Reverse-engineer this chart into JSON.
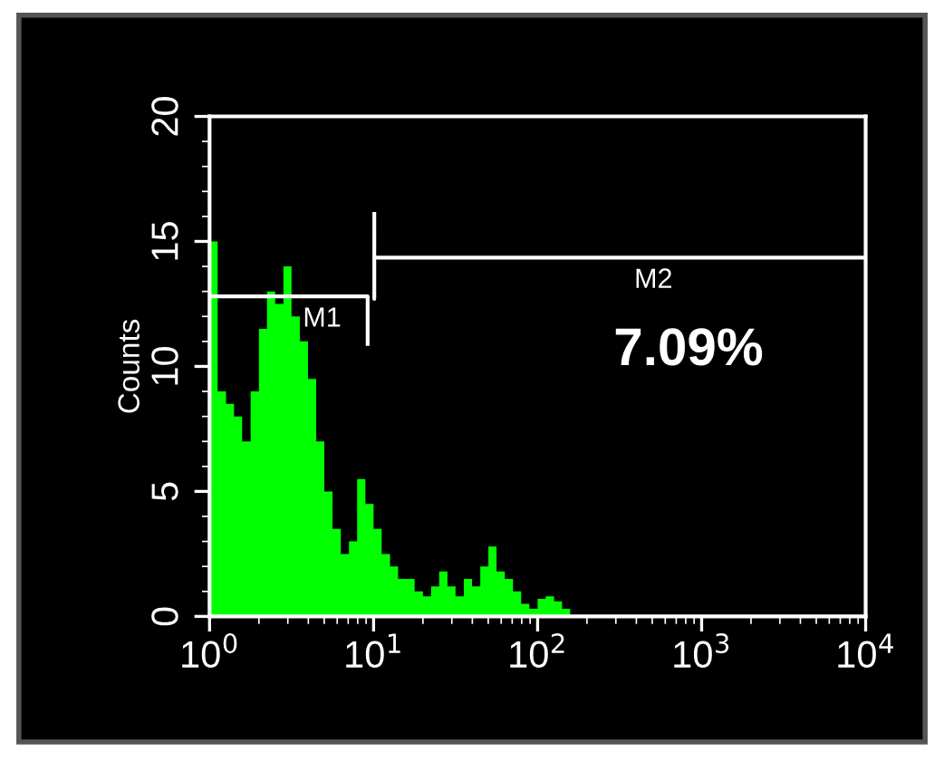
{
  "chart_data": {
    "type": "histogram",
    "ylabel": "Counts",
    "log": "x",
    "color": "#00ff00",
    "bins": [
      1,
      1.12,
      1.26,
      1.41,
      1.58,
      1.78,
      2,
      2.24,
      2.51,
      2.82,
      3.16,
      3.55,
      3.98,
      4.47,
      5.01,
      5.62,
      6.31,
      7.08,
      7.94,
      8.91,
      10,
      11.2,
      12.6,
      14.1,
      15.8,
      17.8,
      20,
      22.4,
      25.1,
      28.2,
      31.6,
      35.5,
      39.8,
      44.7,
      50.1,
      56.2,
      63.1,
      70.8,
      79.4,
      89.1,
      100,
      112,
      126,
      141,
      158
    ],
    "values": [
      15,
      9,
      8.5,
      8,
      7,
      9,
      11.5,
      13,
      12.5,
      14,
      12,
      11,
      9.5,
      7,
      5,
      3.5,
      2.5,
      3,
      5.5,
      4.5,
      3.5,
      2.5,
      2,
      1.5,
      1.5,
      1,
      0.8,
      1.2,
      1.8,
      1.2,
      0.8,
      1.5,
      1.2,
      2,
      2.8,
      1.8,
      1.5,
      1,
      0.5,
      0.3,
      0.7,
      0.8,
      0.6,
      0.3
    ],
    "series": [
      {
        "name": "M1",
        "type": "line",
        "color": "#ffffff",
        "x": [
          1,
          9.2,
          9.2
        ],
        "values": [
          12.8,
          12.8,
          10.9
        ]
      },
      {
        "name": "M2",
        "type": "line",
        "color": "#ffffff",
        "x": [
          10.1,
          10.1,
          10.1,
          10000
        ],
        "values": [
          16.1,
          12.7,
          14.35,
          14.35
        ]
      }
    ],
    "annotations": [
      "7.09%"
    ],
    "xlim": [
      1,
      10000
    ],
    "xticks": [
      {
        "value": 1,
        "label": "10$^{0}$"
      },
      {
        "value": 10,
        "label": "10$^{1}$"
      },
      {
        "value": 100,
        "label": "10$^{2}$"
      },
      {
        "value": 1000,
        "label": "10$^{3}$"
      },
      {
        "value": 10000,
        "label": "10$^{4}$"
      }
    ],
    "ylim": [
      0,
      20
    ],
    "yticks": [
      0,
      5,
      10,
      15,
      20
    ],
    "grid": false,
    "legend": false
  }
}
